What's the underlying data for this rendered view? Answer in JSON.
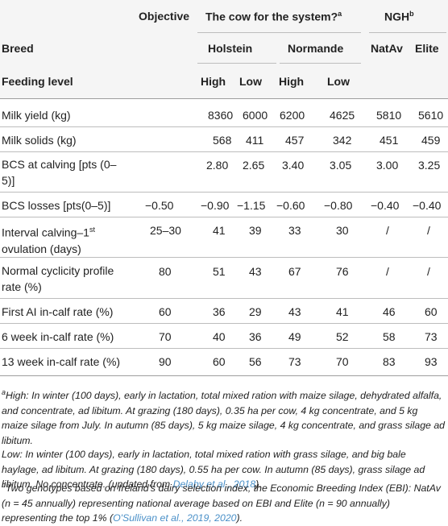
{
  "header": {
    "col_objective": "Objective",
    "group_cow_title": "The cow for the system?",
    "group_cow_sup": "a",
    "group_ngh_title": "NGH",
    "group_ngh_sup": "b",
    "breed_label": "Breed",
    "feeding_label": "Feeding level",
    "breeds": [
      "Holstein",
      "Normande",
      "NatAv",
      "Elite"
    ],
    "levels": [
      "High",
      "Low",
      "High",
      "Low"
    ]
  },
  "rows": [
    {
      "label": "Milk yield (kg)",
      "cells": [
        "",
        "8360",
        "6000",
        "6200",
        "4625",
        "5810",
        "5610"
      ]
    },
    {
      "label": "Milk solids (kg)",
      "cells": [
        "",
        "568",
        "411",
        "457",
        "342",
        "451",
        "459"
      ]
    },
    {
      "label": "BCS at calving [pts (0–5)]",
      "cells": [
        "",
        "2.80",
        "2.65",
        "3.40",
        "3.05",
        "3.00",
        "3.25"
      ]
    },
    {
      "label": "BCS losses [pts(0–5)]",
      "cells": [
        "−0.50",
        "−0.90",
        "−1.15",
        "−0.60",
        "−0.80",
        "−0.40",
        "−0.40"
      ]
    },
    {
      "label_pre": "Interval calving–1",
      "label_sup": "st",
      "label_post": " ovulation (days)",
      "cells": [
        "25–30",
        "41",
        "39",
        "33",
        "30",
        "/",
        "/"
      ]
    },
    {
      "label": "Normal cyclicity profile rate (%)",
      "cells": [
        "80",
        "51",
        "43",
        "67",
        "76",
        "/",
        "/"
      ]
    },
    {
      "label": "First AI in-calf rate (%)",
      "cells": [
        "60",
        "36",
        "29",
        "43",
        "41",
        "46",
        "60"
      ]
    },
    {
      "label": "6 week in-calf rate (%)",
      "cells": [
        "70",
        "40",
        "36",
        "49",
        "52",
        "58",
        "73"
      ]
    },
    {
      "label": "13 week in-calf rate (%)",
      "cells": [
        "90",
        "60",
        "56",
        "73",
        "70",
        "83",
        "93"
      ]
    }
  ],
  "footnotes": {
    "a_sup": "a",
    "a_text": "High: In winter (100 days), early in lactation, total mixed ration with maize silage, dehydrated alfalfa, and concentrate, ad libitum. At grazing (180 days), 0.35 ha per cow, 4 kg concentrate, and 5 kg maize silage from July. In autumn (85 days), 5 kg maize silage, 4 kg concentrate, and grass silage ad libitum.",
    "low_text_pre": "Low: In winter (100 days), early in lactation, total mixed ration with grass silage, and big bale haylage, ad libitum. At grazing (180 days), 0.55 ha per cow. In autumn (85 days), grass silage ad libitum. No concentrate. (updated from ",
    "low_link": "Delaby et al., 2018",
    "low_text_post": ").",
    "b_sup": "b",
    "b_text_pre": "Two genotypes based on Ireland's dairy selection index, the Economic Breeding Index (EBI): NatAv (n = 45 annually) representing national average based on EBI and Elite (n = 90 annually) representing the top 1% (",
    "b_link": "O'Sullivan et al., 2019, 2020",
    "b_text_post": ")."
  }
}
